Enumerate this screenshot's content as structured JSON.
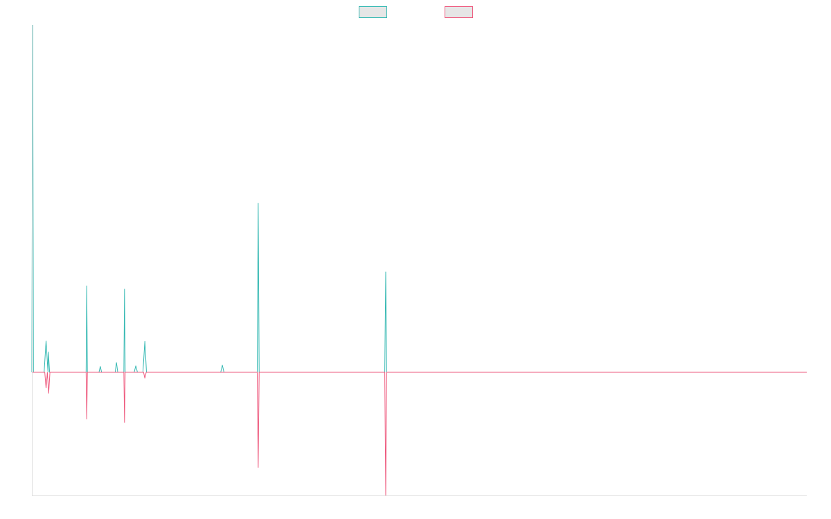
{
  "chart_data": {
    "type": "line",
    "title": "",
    "xlabel": "",
    "ylabel": "",
    "grid": false,
    "legend_position": "top-center",
    "x_count": 241,
    "ylim": [
      -420,
      1000
    ],
    "series": [
      {
        "name": "",
        "color": "#36b9b3",
        "legend_fill": "#e6e6e6",
        "baseline": 0,
        "points": [
          [
            0,
            0
          ],
          [
            0.25,
            1050
          ],
          [
            0.5,
            0
          ],
          [
            3.8,
            0
          ],
          [
            4.4,
            95
          ],
          [
            5.0,
            0
          ],
          [
            5.1,
            62
          ],
          [
            5.5,
            0
          ],
          [
            16.8,
            0
          ],
          [
            17.0,
            262
          ],
          [
            17.2,
            0
          ],
          [
            20.8,
            0
          ],
          [
            21.2,
            18
          ],
          [
            21.6,
            0
          ],
          [
            25.8,
            0
          ],
          [
            26.2,
            30
          ],
          [
            26.6,
            0
          ],
          [
            28.5,
            0
          ],
          [
            28.7,
            252
          ],
          [
            28.9,
            0
          ],
          [
            31.7,
            0
          ],
          [
            32.2,
            20
          ],
          [
            32.7,
            0
          ],
          [
            34.4,
            0
          ],
          [
            35.0,
            94
          ],
          [
            35.5,
            0
          ],
          [
            58.5,
            0
          ],
          [
            59.0,
            22
          ],
          [
            59.5,
            0
          ],
          [
            69.8,
            0
          ],
          [
            70.1,
            512
          ],
          [
            70.4,
            0
          ],
          [
            109.3,
            0
          ],
          [
            109.6,
            304
          ],
          [
            109.9,
            0
          ],
          [
            240,
            0
          ]
        ]
      },
      {
        "name": "",
        "color": "#ee5a7e",
        "legend_fill": "#e6e6e6",
        "baseline": 0,
        "points": [
          [
            0,
            0
          ],
          [
            4.0,
            0
          ],
          [
            4.4,
            -48
          ],
          [
            4.8,
            0
          ],
          [
            5.2,
            -64
          ],
          [
            5.6,
            0
          ],
          [
            16.8,
            0
          ],
          [
            17.0,
            -142
          ],
          [
            17.2,
            0
          ],
          [
            28.5,
            0
          ],
          [
            28.7,
            -152
          ],
          [
            28.9,
            0
          ],
          [
            34.6,
            0
          ],
          [
            35.0,
            -18
          ],
          [
            35.4,
            0
          ],
          [
            69.8,
            0
          ],
          [
            70.1,
            -288
          ],
          [
            70.4,
            0
          ],
          [
            109.3,
            0
          ],
          [
            109.6,
            -372
          ],
          [
            109.9,
            0
          ],
          [
            240,
            0
          ]
        ]
      }
    ]
  }
}
